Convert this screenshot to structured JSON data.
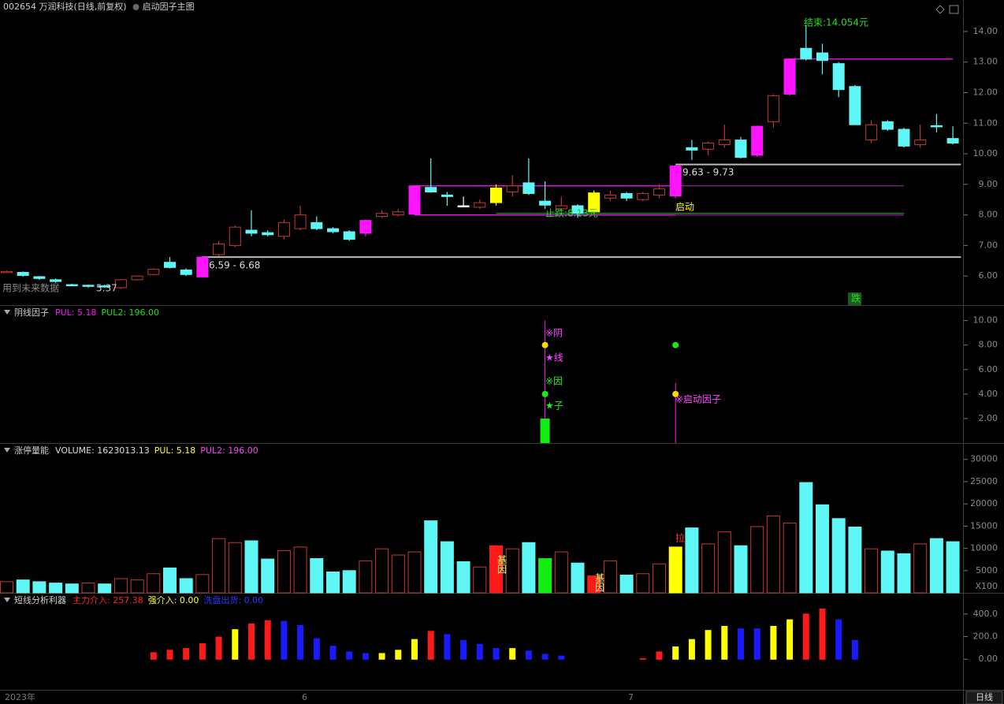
{
  "chart_data": [
    {
      "type": "candlestick",
      "title": "002654 万润科技(日线,前复权)",
      "subtitle": "启动因子主图",
      "ylim": [
        5.05,
        15.03
      ],
      "yticks": [
        {
          "value": 6,
          "label": "6.00"
        },
        {
          "value": 7,
          "label": "7.00"
        },
        {
          "value": 8,
          "label": "8.00"
        },
        {
          "value": 9,
          "label": "9.00"
        },
        {
          "value": 10,
          "label": "10.00"
        },
        {
          "value": 11,
          "label": "11.00"
        },
        {
          "value": 12,
          "label": "12.00"
        },
        {
          "value": 13,
          "label": "13.00"
        },
        {
          "value": 14,
          "label": "14.00"
        }
      ],
      "up_color": "#c4392e",
      "open": [
        6.15,
        6.12,
        5.98,
        5.88,
        5.72,
        5.7,
        5.68,
        5.62,
        5.88,
        6.05,
        6.45,
        6.2,
        5.97,
        6.7,
        7.0,
        7.5,
        7.42,
        7.3,
        7.55,
        7.75,
        7.55,
        7.45,
        7.4,
        7.95,
        8.0,
        8.02,
        8.9,
        8.65,
        8.3,
        8.25,
        8.4,
        8.75,
        9.05,
        8.45,
        8.2,
        8.3,
        8.1,
        8.55,
        8.7,
        8.5,
        8.65,
        8.62,
        10.2,
        10.15,
        10.3,
        10.45,
        9.95,
        11.05,
        11.95,
        13.45,
        13.3,
        12.95,
        12.2,
        10.45,
        11.05,
        10.8,
        10.3,
        10.92,
        10.5
      ],
      "high": [
        6.18,
        6.15,
        6.0,
        5.92,
        5.75,
        5.72,
        5.72,
        5.9,
        6.02,
        6.25,
        6.62,
        6.25,
        6.65,
        7.15,
        7.65,
        8.15,
        7.5,
        7.85,
        8.3,
        7.95,
        7.6,
        7.5,
        7.85,
        8.15,
        8.2,
        8.97,
        9.85,
        8.75,
        8.6,
        8.5,
        9.0,
        9.3,
        9.85,
        9.1,
        8.6,
        8.35,
        8.8,
        8.8,
        8.75,
        8.75,
        9.0,
        9.65,
        10.45,
        10.4,
        10.95,
        10.55,
        10.92,
        11.95,
        13.12,
        14.2,
        13.6,
        13.0,
        12.25,
        11.1,
        11.1,
        10.85,
        10.95,
        11.3,
        10.9
      ],
      "low": [
        6.12,
        5.98,
        5.88,
        5.78,
        5.68,
        5.62,
        5.62,
        5.58,
        5.85,
        6.02,
        6.25,
        6.0,
        5.95,
        6.65,
        6.95,
        7.3,
        7.3,
        7.2,
        7.5,
        7.5,
        7.4,
        7.15,
        7.3,
        7.9,
        7.95,
        8.0,
        8.72,
        8.3,
        8.28,
        8.2,
        8.3,
        8.6,
        8.65,
        8.2,
        8.1,
        7.9,
        8.05,
        8.45,
        8.45,
        8.45,
        8.55,
        8.55,
        9.8,
        9.95,
        10.2,
        9.85,
        9.9,
        10.85,
        11.9,
        13.05,
        12.6,
        11.85,
        10.95,
        10.35,
        10.75,
        10.2,
        10.2,
        10.7,
        10.3
      ],
      "close": [
        6.15,
        6.02,
        5.92,
        5.82,
        5.7,
        5.68,
        5.66,
        5.88,
        6.0,
        6.22,
        6.28,
        6.05,
        6.62,
        7.05,
        7.6,
        7.4,
        7.35,
        7.75,
        8.0,
        7.55,
        7.45,
        7.2,
        7.82,
        8.05,
        8.1,
        8.95,
        8.75,
        8.6,
        8.3,
        8.4,
        8.88,
        8.95,
        8.7,
        8.32,
        8.3,
        8.05,
        8.72,
        8.65,
        8.55,
        8.7,
        8.85,
        9.6,
        10.12,
        10.35,
        10.45,
        9.88,
        10.9,
        11.9,
        13.1,
        13.1,
        13.05,
        12.1,
        10.95,
        10.95,
        10.8,
        10.25,
        10.45,
        10.88,
        10.35
      ],
      "colors": [
        "#c4392e",
        "#5ff6f6",
        "#5ff6f6",
        "#5ff6f6",
        "#5ff6f6",
        "#5ff6f6",
        "#5ff6f6",
        "#c4392e",
        "#c4392e",
        "#c4392e",
        "#5ff6f6",
        "#5ff6f6",
        "#ff14ff",
        "#c4392e",
        "#c4392e",
        "#5ff6f6",
        "#5ff6f6",
        "#c4392e",
        "#c4392e",
        "#5ff6f6",
        "#5ff6f6",
        "#5ff6f6",
        "#ff14ff",
        "#c4392e",
        "#c4392e",
        "#ff14ff",
        "#5ff6f6",
        "#5ff6f6",
        "#ffffff",
        "#c4392e",
        "#ffff00",
        "#c4392e",
        "#5ff6f6",
        "#5ff6f6",
        "#c4392e",
        "#5ff6f6",
        "#ffff00",
        "#c4392e",
        "#5ff6f6",
        "#c4392e",
        "#c4392e",
        "#ff14ff",
        "#5ff6f6",
        "#c4392e",
        "#c4392e",
        "#5ff6f6",
        "#ff14ff",
        "#c4392e",
        "#ff14ff",
        "#5ff6f6",
        "#5ff6f6",
        "#5ff6f6",
        "#5ff6f6",
        "#c4392e",
        "#5ff6f6",
        "#5ff6f6",
        "#c4392e",
        "#5ff6f6",
        "#5ff6f6"
      ],
      "levels": [
        {
          "value": 6.62,
          "color": "#bbbbbb"
        },
        {
          "value": 9.65,
          "color": "#bbbbbb"
        },
        {
          "value": 8.95,
          "color": "#ff14ff"
        },
        {
          "value": 8.0,
          "color": "#ff14ff"
        },
        {
          "value": 8.95,
          "color": "#8a1e9a"
        },
        {
          "value": 8.0,
          "color": "#8a1e9a"
        },
        {
          "value": 8.05,
          "color": "#22aa22"
        },
        {
          "value": 13.1,
          "color": "#ff14ff"
        }
      ],
      "annotations": [
        {
          "text": "6.59 - 6.68",
          "color": "#dddddd"
        },
        {
          "text": "9.63 - 9.73",
          "color": "#dddddd"
        },
        {
          "text": "启动",
          "color": "#ffff00"
        },
        {
          "text": "止跌:8.13元",
          "color": "#22dd22"
        },
        {
          "text": "结束:14.054元",
          "color": "#22dd22"
        },
        {
          "text": "用到未来数据",
          "color": "#888888"
        },
        {
          "text": "5.37",
          "color": "#cccccc"
        },
        {
          "text": "跌",
          "color": "#22dd22"
        }
      ]
    },
    {
      "type": "indicator",
      "title": "阴线因子",
      "legend": [
        {
          "text": "PUL: 5.18",
          "color": "#ff14ff"
        },
        {
          "text": "PUL2: 196.00",
          "color": "#22dd22"
        }
      ],
      "ylim": [
        0,
        11.2
      ],
      "yticks": [
        {
          "value": 2,
          "label": "2.00"
        },
        {
          "value": 4,
          "label": "4.00"
        },
        {
          "value": 6,
          "label": "6.00"
        },
        {
          "value": 8,
          "label": "8.00"
        },
        {
          "value": 10,
          "label": "10.00"
        }
      ],
      "bar_color": "#11ee11",
      "stem_color": "#ff14ff",
      "bars": [
        null,
        null,
        null,
        null,
        null,
        null,
        null,
        null,
        null,
        null,
        null,
        null,
        null,
        null,
        null,
        null,
        null,
        null,
        null,
        null,
        null,
        null,
        null,
        null,
        null,
        null,
        null,
        null,
        null,
        null,
        null,
        null,
        null,
        2,
        null,
        null,
        null,
        null,
        null,
        null,
        null,
        null,
        null,
        null,
        null,
        null,
        null,
        null,
        null,
        null,
        null,
        null,
        null,
        null,
        null,
        null,
        null,
        null,
        null
      ],
      "stems": [
        null,
        null,
        null,
        null,
        null,
        null,
        null,
        null,
        null,
        null,
        null,
        null,
        null,
        null,
        null,
        null,
        null,
        null,
        null,
        null,
        null,
        null,
        null,
        null,
        null,
        null,
        null,
        null,
        null,
        null,
        null,
        null,
        null,
        10,
        null,
        null,
        null,
        null,
        null,
        null,
        null,
        4.9,
        null,
        null,
        null,
        null,
        null,
        null,
        null,
        null,
        null,
        null,
        null,
        null,
        null,
        null,
        null,
        null,
        null
      ],
      "series": [
        {
          "color": "#ffd800",
          "values": [
            null,
            null,
            null,
            null,
            null,
            null,
            null,
            null,
            null,
            null,
            null,
            null,
            null,
            null,
            null,
            null,
            null,
            null,
            null,
            null,
            null,
            null,
            null,
            null,
            null,
            null,
            null,
            null,
            null,
            null,
            null,
            null,
            null,
            8,
            null,
            null,
            null,
            null,
            null,
            null,
            null,
            4,
            null,
            null,
            null,
            null,
            null,
            null,
            null,
            null,
            null,
            null,
            null,
            null,
            null,
            null,
            null,
            null,
            null
          ]
        },
        {
          "color": "#11ee11",
          "values": [
            null,
            null,
            null,
            null,
            null,
            null,
            null,
            null,
            null,
            null,
            null,
            null,
            null,
            null,
            null,
            null,
            null,
            null,
            null,
            null,
            null,
            null,
            null,
            null,
            null,
            null,
            null,
            null,
            null,
            null,
            null,
            null,
            null,
            4,
            null,
            null,
            null,
            null,
            null,
            null,
            null,
            8,
            null,
            null,
            null,
            null,
            null,
            null,
            null,
            null,
            null,
            null,
            null,
            null,
            null,
            null,
            null,
            null,
            null
          ]
        }
      ],
      "annotations": [
        {
          "text": "※阴",
          "color": "#ff44ff"
        },
        {
          "text": "★线",
          "color": "#ff44ff"
        },
        {
          "text": "※因",
          "color": "#22ee22"
        },
        {
          "text": "★子",
          "color": "#22ee22"
        },
        {
          "text": "※启动因子",
          "color": "#ff44ff"
        }
      ]
    },
    {
      "type": "bar",
      "title": "涨停量能",
      "legend": [
        {
          "text": "VOLUME: 1623013.13",
          "color": "#dddddd"
        },
        {
          "text": "PUL: 5.18",
          "color": "#ffff33"
        },
        {
          "text": "PUL2: 196.00",
          "color": "#ff44ff"
        }
      ],
      "ylim": [
        0,
        33500
      ],
      "yticks": [
        5000,
        10000,
        15000,
        20000,
        25000,
        30000
      ],
      "unit": "X100",
      "up_color": "#c4392e",
      "values": [
        2500,
        2900,
        2500,
        2200,
        2000,
        2200,
        2000,
        3200,
        2900,
        4300,
        5600,
        3200,
        4100,
        12200,
        11300,
        11700,
        7600,
        9500,
        10300,
        7700,
        4700,
        5000,
        7200,
        9900,
        8500,
        9200,
        16200,
        11500,
        7000,
        5800,
        10600,
        9900,
        11300,
        7700,
        9200,
        6700,
        3800,
        7200,
        4000,
        4300,
        6500,
        10300,
        14600,
        11000,
        13700,
        10600,
        14900,
        17300,
        15700,
        24800,
        19800,
        16700,
        14800,
        9900,
        9400,
        8800,
        11000,
        12200,
        11500
      ],
      "colors": [
        "#c4392e",
        "#5ff6f6",
        "#5ff6f6",
        "#5ff6f6",
        "#5ff6f6",
        "#c4392e",
        "#5ff6f6",
        "#c4392e",
        "#c4392e",
        "#c4392e",
        "#5ff6f6",
        "#5ff6f6",
        "#c4392e",
        "#c4392e",
        "#c4392e",
        "#5ff6f6",
        "#5ff6f6",
        "#c4392e",
        "#c4392e",
        "#5ff6f6",
        "#5ff6f6",
        "#5ff6f6",
        "#c4392e",
        "#c4392e",
        "#c4392e",
        "#c4392e",
        "#5ff6f6",
        "#5ff6f6",
        "#5ff6f6",
        "#c4392e",
        "#ff1a1a",
        "#c4392e",
        "#5ff6f6",
        "#11ee11",
        "#c4392e",
        "#5ff6f6",
        "#ff1a1a",
        "#c4392e",
        "#5ff6f6",
        "#c4392e",
        "#c4392e",
        "#ffff00",
        "#5ff6f6",
        "#c4392e",
        "#c4392e",
        "#5ff6f6",
        "#c4392e",
        "#c4392e",
        "#c4392e",
        "#5ff6f6",
        "#5ff6f6",
        "#5ff6f6",
        "#5ff6f6",
        "#c4392e",
        "#5ff6f6",
        "#5ff6f6",
        "#c4392e",
        "#5ff6f6",
        "#5ff6f6"
      ],
      "annotations": [
        {
          "text": "基因",
          "color": "#ffff66"
        },
        {
          "text": "基因",
          "color": "#ffff66"
        },
        {
          "text": "拉",
          "color": "#ff3333"
        }
      ]
    },
    {
      "type": "bar",
      "title": "短线分析利器",
      "legend": [
        {
          "text": "主力介入: 257.38",
          "color": "#ff2222"
        },
        {
          "text": "强介入: 0.00",
          "color": "#ffff33"
        },
        {
          "text": "洗盘出货: 0.00",
          "color": "#3333ff"
        }
      ],
      "ylim": [
        -270,
        580
      ],
      "yticks": [
        {
          "value": 0,
          "label": "0.00"
        },
        {
          "value": 200,
          "label": "200.0"
        },
        {
          "value": 400,
          "label": "400.0"
        }
      ],
      "values": [
        null,
        null,
        null,
        null,
        null,
        null,
        null,
        null,
        null,
        58,
        80,
        95,
        138,
        196,
        262,
        313,
        342,
        335,
        298,
        182,
        116,
        65,
        51,
        51,
        80,
        175,
        247,
        218,
        167,
        131,
        95,
        95,
        73,
        44,
        29,
        null,
        null,
        null,
        null,
        7,
        65,
        109,
        175,
        255,
        291,
        269,
        269,
        291,
        349,
        400,
        444,
        349,
        167,
        null,
        null,
        null,
        null,
        null,
        null
      ],
      "colors": [
        null,
        null,
        null,
        null,
        null,
        null,
        null,
        null,
        null,
        "#ff1a1a",
        "#ff1a1a",
        "#ff1a1a",
        "#ff1a1a",
        "#ff1a1a",
        "#ffff00",
        "#ff1a1a",
        "#ff1a1a",
        "#1a1aff",
        "#1a1aff",
        "#1a1aff",
        "#1a1aff",
        "#1a1aff",
        "#1a1aff",
        "#ffff00",
        "#ffff00",
        "#ffff00",
        "#ff1a1a",
        "#1a1aff",
        "#1a1aff",
        "#1a1aff",
        "#1a1aff",
        "#ffff00",
        "#1a1aff",
        "#1a1aff",
        "#1a1aff",
        null,
        null,
        null,
        null,
        "#ff1a1a",
        "#ff1a1a",
        "#ffff00",
        "#ffff00",
        "#ffff00",
        "#ffff00",
        "#1a1aff",
        "#1a1aff",
        "#ffff00",
        "#ffff00",
        "#ff1a1a",
        "#ff1a1a",
        "#1a1aff",
        "#1a1aff",
        null,
        null,
        null,
        null,
        null,
        null
      ]
    }
  ],
  "time_axis": {
    "labels": [
      "2023年",
      "6",
      "7"
    ],
    "period": "日线"
  }
}
